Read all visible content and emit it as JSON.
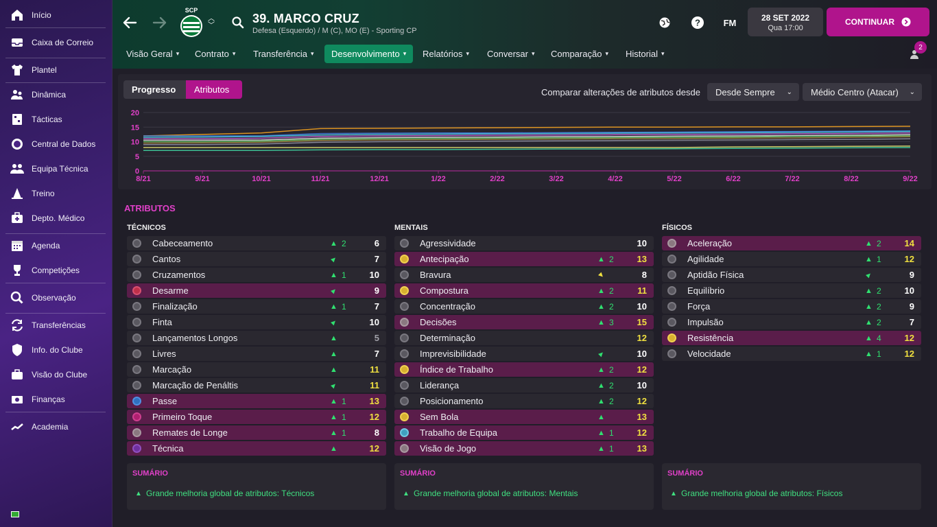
{
  "sidebar": {
    "items": [
      {
        "label": "Início",
        "icon": "home-icon"
      },
      {
        "label": "Caixa de Correio",
        "icon": "inbox-icon"
      },
      {
        "label": "Plantel",
        "icon": "shirt-icon"
      },
      {
        "label": "Dinâmica",
        "icon": "people-dynamics-icon"
      },
      {
        "label": "Tácticas",
        "icon": "tactics-board-icon"
      },
      {
        "label": "Central de Dados",
        "icon": "data-globe-icon"
      },
      {
        "label": "Equipa Técnica",
        "icon": "staff-icon"
      },
      {
        "label": "Treino",
        "icon": "training-cone-icon"
      },
      {
        "label": "Depto. Médico",
        "icon": "medical-kit-icon"
      },
      {
        "label": "Agenda",
        "icon": "calendar-icon"
      },
      {
        "label": "Competições",
        "icon": "trophy-icon"
      },
      {
        "label": "Observação",
        "icon": "magnifier-icon"
      },
      {
        "label": "Transferências",
        "icon": "transfer-arrows-icon"
      },
      {
        "label": "Info. do Clube",
        "icon": "club-shield-icon"
      },
      {
        "label": "Visão do Clube",
        "icon": "briefcase-icon"
      },
      {
        "label": "Finanças",
        "icon": "finance-icon"
      },
      {
        "label": "Academia",
        "icon": "academy-trend-icon"
      }
    ]
  },
  "header": {
    "club_abbr": "SCP",
    "player_name": "39. MARCO CRUZ",
    "player_sub": "Defesa (Esquerdo) / M (C), MO (E) - Sporting CP",
    "fm_label": "FM",
    "date": "28 SET 2022",
    "day_time": "Qua 17:00",
    "continue_label": "CONTINUAR",
    "notification_count": "2"
  },
  "tabs": [
    {
      "label": "Visão Geral",
      "active": false
    },
    {
      "label": "Contrato",
      "active": false
    },
    {
      "label": "Transferência",
      "active": false
    },
    {
      "label": "Desenvolvimento",
      "active": true
    },
    {
      "label": "Relatórios",
      "active": false
    },
    {
      "label": "Conversar",
      "active": false
    },
    {
      "label": "Comparação",
      "active": false
    },
    {
      "label": "Historial",
      "active": false
    }
  ],
  "toggles": {
    "progress": "Progresso",
    "attributes": "Atributos"
  },
  "compare": {
    "label": "Comparar alterações de atributos desde",
    "since": "Desde Sempre",
    "role": "Médio Centro (Atacar)"
  },
  "chart_data": {
    "type": "line",
    "categories": [
      "8/21",
      "9/21",
      "10/21",
      "11/21",
      "12/21",
      "1/22",
      "2/22",
      "3/22",
      "4/22",
      "5/22",
      "6/22",
      "7/22",
      "8/22",
      "9/22"
    ],
    "y_ticks": [
      "20",
      "15",
      "10",
      "5",
      "0"
    ],
    "ylim": [
      0,
      20
    ],
    "grid": true,
    "series": [
      {
        "color": "#f0a020",
        "values": [
          12,
          12.5,
          13,
          14.5,
          14.6,
          14.7,
          14.8,
          14.9,
          15,
          15,
          15.1,
          15.1,
          15.2,
          15.3
        ]
      },
      {
        "color": "#4080e0",
        "values": [
          12,
          12,
          12,
          12.8,
          12.9,
          13,
          13,
          13.1,
          13.2,
          13.3,
          13.4,
          13.5,
          13.6,
          13.7
        ]
      },
      {
        "color": "#50c8e0",
        "values": [
          11.5,
          11.6,
          11.8,
          12.3,
          12.5,
          12.6,
          12.7,
          12.8,
          12.9,
          13,
          13.1,
          13.2,
          13.3,
          13.5
        ]
      },
      {
        "color": "#c060d0",
        "values": [
          11,
          11,
          11.2,
          11.8,
          12,
          12.1,
          12.2,
          12.3,
          12.4,
          12.5,
          12.6,
          12.7,
          12.8,
          13
        ]
      },
      {
        "color": "#e0e0e0",
        "values": [
          10.5,
          10.5,
          10.6,
          11.2,
          11.4,
          11.5,
          11.6,
          11.7,
          11.8,
          11.9,
          12,
          12.1,
          12.2,
          12.4
        ]
      },
      {
        "color": "#60c060",
        "values": [
          10,
          10,
          10.2,
          10.8,
          11,
          11.1,
          11.2,
          11.3,
          11.4,
          11.5,
          11.6,
          11.8,
          11.9,
          12
        ]
      },
      {
        "color": "#a08040",
        "values": [
          9.5,
          9.6,
          9.8,
          10.4,
          10.6,
          10.7,
          10.8,
          10.9,
          11,
          11.1,
          11.2,
          11.3,
          11.5,
          11.7
        ]
      },
      {
        "color": "#9090a0",
        "values": [
          9,
          9,
          9.2,
          9.8,
          10,
          10.1,
          10.2,
          10.3,
          10.4,
          10.5,
          10.6,
          10.7,
          10.8,
          11
        ]
      },
      {
        "color": "#e0e070",
        "values": [
          8,
          8,
          8,
          8,
          8,
          8,
          8,
          8,
          8,
          8,
          8.2,
          8.3,
          8.4,
          8.5
        ]
      },
      {
        "color": "#40d0a0",
        "values": [
          7,
          7,
          7,
          7.2,
          7.3,
          7.3,
          7.4,
          7.5,
          7.5,
          7.6,
          7.7,
          7.8,
          7.9,
          8
        ]
      }
    ]
  },
  "attributes": {
    "title": "ATRIBUTOS",
    "columns": [
      {
        "title": "TÉCNICOS",
        "rows": [
          {
            "name": "Cabeceamento",
            "arrow": "up",
            "change": "2",
            "value": "6",
            "vcolor": "w",
            "hl": false,
            "dot": "gry-dark"
          },
          {
            "name": "Cantos",
            "arrow": "diag",
            "change": "",
            "value": "7",
            "vcolor": "w",
            "hl": false,
            "dot": "gry-dark"
          },
          {
            "name": "Cruzamentos",
            "arrow": "up",
            "change": "1",
            "value": "10",
            "vcolor": "w",
            "hl": false,
            "dot": "gry-dark"
          },
          {
            "name": "Desarme",
            "arrow": "diag",
            "change": "",
            "value": "9",
            "vcolor": "w",
            "hl": true,
            "dot": "red"
          },
          {
            "name": "Finalização",
            "arrow": "up",
            "change": "1",
            "value": "7",
            "vcolor": "w",
            "hl": false,
            "dot": "gry-dark"
          },
          {
            "name": "Finta",
            "arrow": "diag",
            "change": "",
            "value": "10",
            "vcolor": "w",
            "hl": false,
            "dot": "gry-dark"
          },
          {
            "name": "Lançamentos Longos",
            "arrow": "up",
            "change": "",
            "value": "5",
            "vcolor": "g",
            "hl": false,
            "dot": "gry-dark"
          },
          {
            "name": "Livres",
            "arrow": "up",
            "change": "",
            "value": "7",
            "vcolor": "w",
            "hl": false,
            "dot": "gry-dark"
          },
          {
            "name": "Marcação",
            "arrow": "up",
            "change": "",
            "value": "11",
            "vcolor": "y",
            "hl": false,
            "dot": "gry-dark"
          },
          {
            "name": "Marcação de Penáltis",
            "arrow": "diag",
            "change": "",
            "value": "11",
            "vcolor": "y",
            "hl": false,
            "dot": "gry-dark"
          },
          {
            "name": "Passe",
            "arrow": "up",
            "change": "1",
            "value": "13",
            "vcolor": "y",
            "hl": true,
            "dot": "blu"
          },
          {
            "name": "Primeiro Toque",
            "arrow": "up",
            "change": "1",
            "value": "12",
            "vcolor": "y",
            "hl": true,
            "dot": "mag"
          },
          {
            "name": "Remates de Longe",
            "arrow": "up",
            "change": "1",
            "value": "8",
            "vcolor": "w",
            "hl": true,
            "dot": "gry"
          },
          {
            "name": "Técnica",
            "arrow": "up",
            "change": "",
            "value": "12",
            "vcolor": "y",
            "hl": true,
            "dot": "pur"
          }
        ]
      },
      {
        "title": "MENTAIS",
        "rows": [
          {
            "name": "Agressividade",
            "arrow": "",
            "change": "",
            "value": "10",
            "vcolor": "w",
            "hl": false,
            "dot": "gry-dark"
          },
          {
            "name": "Antecipação",
            "arrow": "up",
            "change": "2",
            "value": "13",
            "vcolor": "y",
            "hl": true,
            "dot": "yel"
          },
          {
            "name": "Bravura",
            "arrow": "yel",
            "change": "",
            "value": "8",
            "vcolor": "w",
            "hl": false,
            "dot": "gry-dark"
          },
          {
            "name": "Compostura",
            "arrow": "up",
            "change": "2",
            "value": "11",
            "vcolor": "y",
            "hl": true,
            "dot": "yel"
          },
          {
            "name": "Concentração",
            "arrow": "up",
            "change": "2",
            "value": "10",
            "vcolor": "w",
            "hl": false,
            "dot": "gry-dark"
          },
          {
            "name": "Decisões",
            "arrow": "up",
            "change": "3",
            "value": "15",
            "vcolor": "y",
            "hl": true,
            "dot": "gry"
          },
          {
            "name": "Determinação",
            "arrow": "",
            "change": "",
            "value": "12",
            "vcolor": "y",
            "hl": false,
            "dot": "gry-dark"
          },
          {
            "name": "Imprevisibilidade",
            "arrow": "diag",
            "change": "",
            "value": "10",
            "vcolor": "w",
            "hl": false,
            "dot": "gry-dark"
          },
          {
            "name": "Índice de Trabalho",
            "arrow": "up",
            "change": "2",
            "value": "12",
            "vcolor": "y",
            "hl": true,
            "dot": "yel"
          },
          {
            "name": "Liderança",
            "arrow": "up",
            "change": "2",
            "value": "10",
            "vcolor": "w",
            "hl": false,
            "dot": "gry-dark"
          },
          {
            "name": "Posicionamento",
            "arrow": "up",
            "change": "2",
            "value": "12",
            "vcolor": "y",
            "hl": false,
            "dot": "gry-dark"
          },
          {
            "name": "Sem Bola",
            "arrow": "up",
            "change": "",
            "value": "13",
            "vcolor": "y",
            "hl": true,
            "dot": "yel"
          },
          {
            "name": "Trabalho de Equipa",
            "arrow": "up",
            "change": "1",
            "value": "12",
            "vcolor": "y",
            "hl": true,
            "dot": "cya"
          },
          {
            "name": "Visão de Jogo",
            "arrow": "up",
            "change": "1",
            "value": "13",
            "vcolor": "y",
            "hl": true,
            "dot": "gry"
          }
        ]
      },
      {
        "title": "FÍSICOS",
        "rows": [
          {
            "name": "Aceleração",
            "arrow": "up",
            "change": "2",
            "value": "14",
            "vcolor": "y",
            "hl": true,
            "dot": "gry"
          },
          {
            "name": "Agilidade",
            "arrow": "up",
            "change": "1",
            "value": "12",
            "vcolor": "y",
            "hl": false,
            "dot": "gry-dark"
          },
          {
            "name": "Aptidão Física",
            "arrow": "diag",
            "change": "",
            "value": "9",
            "vcolor": "w",
            "hl": false,
            "dot": "gry-dark"
          },
          {
            "name": "Equilíbrio",
            "arrow": "up",
            "change": "2",
            "value": "10",
            "vcolor": "w",
            "hl": false,
            "dot": "gry-dark"
          },
          {
            "name": "Força",
            "arrow": "up",
            "change": "2",
            "value": "9",
            "vcolor": "w",
            "hl": false,
            "dot": "gry-dark"
          },
          {
            "name": "Impulsão",
            "arrow": "up",
            "change": "2",
            "value": "7",
            "vcolor": "w",
            "hl": false,
            "dot": "gry-dark"
          },
          {
            "name": "Resistência",
            "arrow": "up",
            "change": "4",
            "value": "12",
            "vcolor": "y",
            "hl": true,
            "dot": "yel"
          },
          {
            "name": "Velocidade",
            "arrow": "up",
            "change": "1",
            "value": "12",
            "vcolor": "y",
            "hl": false,
            "dot": "gry-dark"
          }
        ]
      }
    ]
  },
  "summaries": [
    {
      "title": "SUMÁRIO",
      "text": "Grande melhoria global de atributos: Técnicos"
    },
    {
      "title": "SUMÁRIO",
      "text": "Grande melhoria global de atributos: Mentais"
    },
    {
      "title": "SUMÁRIO",
      "text": "Grande melhoria global de atributos: Físicos"
    }
  ]
}
